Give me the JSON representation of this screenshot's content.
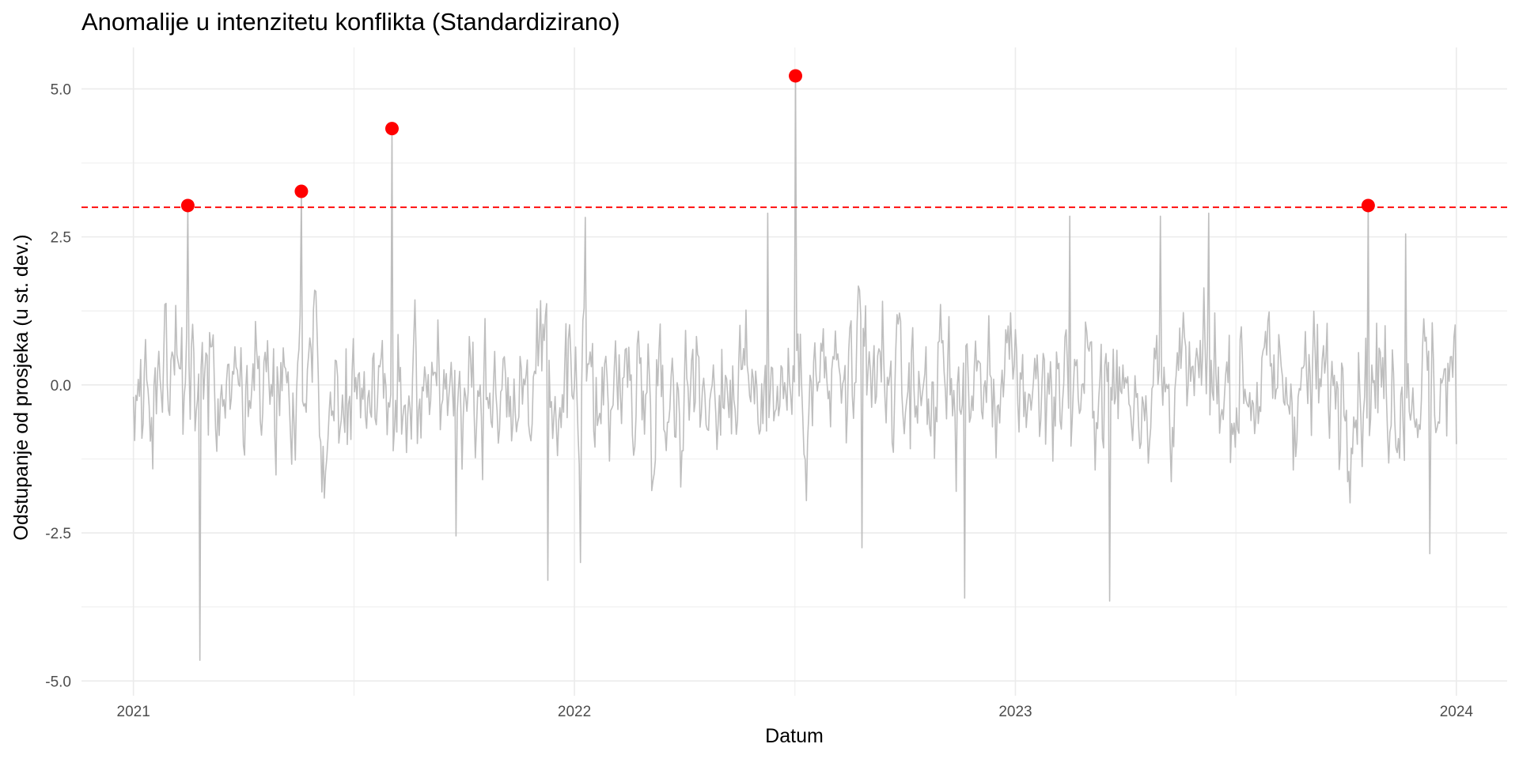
{
  "chart_data": {
    "type": "line",
    "title": "Anomalije u intenzitetu konflikta (Standardizirano)",
    "xlabel": "Datum",
    "ylabel": "Odstupanje od prosjeka (u st. dev.)",
    "x_range": [
      "2020-11-19",
      "2024-02-12"
    ],
    "ylim": [
      -5.25,
      5.7
    ],
    "x_ticks": [
      {
        "date": "2021-01-01",
        "label": "2021"
      },
      {
        "date": "2022-01-01",
        "label": "2022"
      },
      {
        "date": "2023-01-01",
        "label": "2023"
      },
      {
        "date": "2024-01-01",
        "label": "2024"
      }
    ],
    "y_ticks": [
      {
        "value": 5.0,
        "label": "5.0"
      },
      {
        "value": 2.5,
        "label": "2.5"
      },
      {
        "value": 0.0,
        "label": "0.0"
      },
      {
        "value": -2.5,
        "label": "-2.5"
      },
      {
        "value": -5.0,
        "label": "-5.0"
      }
    ],
    "threshold": 3.0,
    "grid": true,
    "legend": "none",
    "series": [
      {
        "role": "standardized-intensity",
        "x_start": "2021-01-01",
        "x_end": "2024-01-01",
        "peaks": [
          {
            "date": "2021-02-15",
            "value": 3.03
          },
          {
            "date": "2021-05-20",
            "value": 3.27
          },
          {
            "date": "2021-08-03",
            "value": 4.33
          },
          {
            "date": "2022-07-03",
            "value": 5.22
          },
          {
            "date": "2023-10-20",
            "value": 3.03
          },
          {
            "date": "2021-02-25",
            "value": -4.65
          },
          {
            "date": "2022-11-20",
            "value": -3.6
          },
          {
            "date": "2023-03-20",
            "value": -3.65
          },
          {
            "date": "2021-12-10",
            "value": -3.3
          },
          {
            "date": "2022-01-06",
            "value": -3.0
          },
          {
            "date": "2023-12-10",
            "value": -2.85
          },
          {
            "date": "2022-08-27",
            "value": -2.75
          },
          {
            "date": "2021-09-25",
            "value": -2.55
          },
          {
            "date": "2022-01-10",
            "value": 2.83
          },
          {
            "date": "2023-02-15",
            "value": 2.85
          },
          {
            "date": "2023-05-01",
            "value": 2.85
          },
          {
            "date": "2023-06-10",
            "value": 2.9
          },
          {
            "date": "2022-06-10",
            "value": 2.9
          },
          {
            "date": "2023-11-20",
            "value": 2.55
          }
        ]
      },
      {
        "role": "anomalies",
        "points": [
          {
            "date": "2021-02-15",
            "value": 3.03
          },
          {
            "date": "2021-05-20",
            "value": 3.27
          },
          {
            "date": "2021-08-03",
            "value": 4.33
          },
          {
            "date": "2022-07-03",
            "value": 5.22
          },
          {
            "date": "2023-10-20",
            "value": 3.03
          }
        ]
      }
    ],
    "colors": {
      "line": "#bebebe",
      "anomaly": "#ff0000",
      "threshold": "#ff0000",
      "grid": "#ebebeb"
    }
  }
}
